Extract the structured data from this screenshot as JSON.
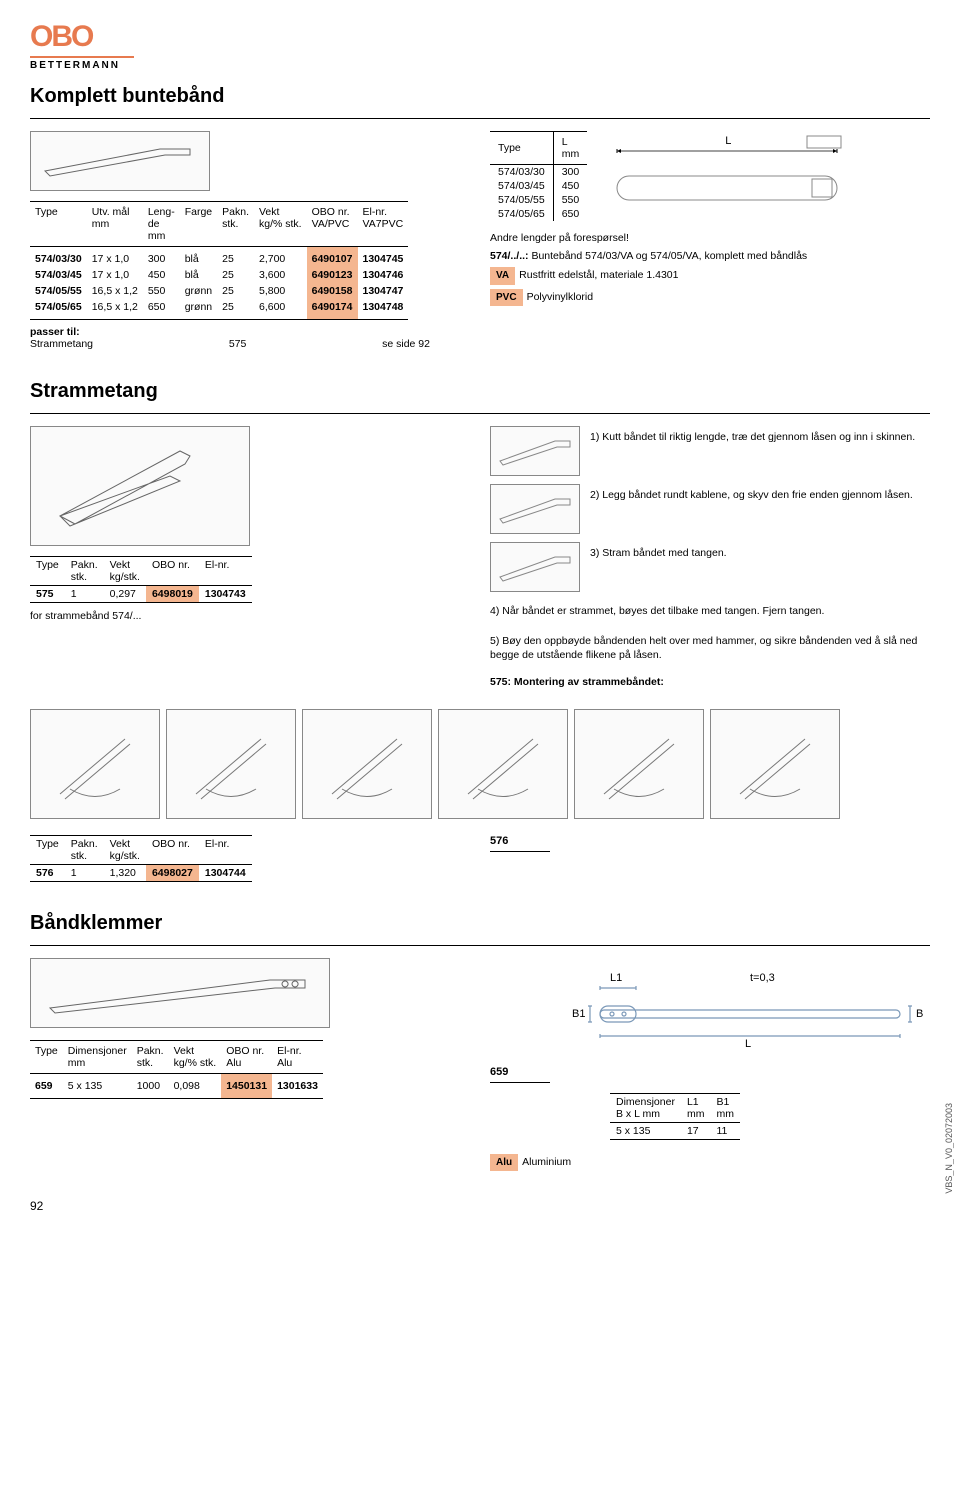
{
  "brand": {
    "name": "OBO",
    "sub": "BETTERMANN"
  },
  "s1": {
    "title": "Komplett buntebånd",
    "headers": [
      "Type",
      "Utv. mål\nmm",
      "Leng-\nde\nmm",
      "Farge",
      "Pakn.\nstk.",
      "Vekt\nkg/% stk.",
      "OBO nr.\nVA/PVC",
      "El-nr.\nVA7PVC"
    ],
    "rows": [
      [
        "574/03/30",
        "17  x 1,0",
        "300",
        "blå",
        "25",
        "2,700",
        "6490107",
        "1304745"
      ],
      [
        "574/03/45",
        "17  x 1,0",
        "450",
        "blå",
        "25",
        "3,600",
        "6490123",
        "1304746"
      ],
      [
        "574/05/55",
        "16,5 x 1,2",
        "550",
        "grønn",
        "25",
        "5,800",
        "6490158",
        "1304747"
      ],
      [
        "574/05/65",
        "16,5 x 1,2",
        "650",
        "grønn",
        "25",
        "6,600",
        "6490174",
        "1304748"
      ]
    ],
    "passer_label": "passer til:",
    "passer_row": [
      "Strammetang",
      "575",
      "se side 92"
    ],
    "right_headers": [
      "Type",
      "L\nmm"
    ],
    "right_rows": [
      [
        "574/03/30",
        "300"
      ],
      [
        "574/03/45",
        "450"
      ],
      [
        "574/05/55",
        "550"
      ],
      [
        "574/05/65",
        "650"
      ]
    ],
    "right_L": "L",
    "note1": "Andre lengder på forespørsel!",
    "note2_pre": "574/../..: ",
    "note2": "Buntebånd 574/03/VA og 574/05/VA, komplett med båndlås",
    "mat1_code": "VA",
    "mat1_txt": "Rustfritt edelstål, materiale 1.4301",
    "mat2_code": "PVC",
    "mat2_txt": "Polyvinylklorid"
  },
  "s2": {
    "title": "Strammetang",
    "headers": [
      "Type",
      "Pakn.\nstk.",
      "Vekt\nkg/stk.",
      "OBO nr.",
      "El-nr."
    ],
    "row": [
      "575",
      "1",
      "0,297",
      "6498019",
      "1304743"
    ],
    "for_txt": "for strammebånd 574/...",
    "steps": [
      "1) Kutt båndet til riktig lengde, træ det gjennom låsen og inn i skinnen.",
      "2) Legg båndet rundt kablene, og skyv den frie enden gjennom låsen.",
      "3) Stram båndet med tangen.",
      "4) Når båndet er strammet, bøyes det tilbake med tangen. Fjern tangen.",
      "5) Bøy den oppbøyde båndenden helt over med hammer, og sikre båndenden ved å slå ned begge de utstående flikene på låsen."
    ],
    "mount": "575: Montering av strammebåndet:"
  },
  "s3": {
    "headers": [
      "Type",
      "Pakn.\nstk.",
      "Vekt\nkg/stk.",
      "OBO nr.",
      "El-nr."
    ],
    "row": [
      "576",
      "1",
      "1,320",
      "6498027",
      "1304744"
    ],
    "right_label": "576"
  },
  "s4": {
    "title": "Båndklemmer",
    "headers": [
      "Type",
      "Dimensjoner\nmm",
      "Pakn.\nstk.",
      "Vekt\nkg/% stk.",
      "OBO nr.\nAlu",
      "El-nr.\nAlu"
    ],
    "row": [
      "659",
      "5 x 135",
      "1000",
      "0,098",
      "1450131",
      "1301633"
    ],
    "right_label": "659",
    "dim_headers": [
      "Dimensjoner\nB x L mm",
      "L1\nmm",
      "B1\nmm"
    ],
    "dim_row": [
      "5 x 135",
      "17",
      "11"
    ],
    "mat_code": "Alu",
    "mat_txt": "Aluminium",
    "draw": {
      "L1": "L1",
      "t": "t=0,3",
      "B": "B",
      "B1": "B1",
      "L": "L"
    }
  },
  "footer": {
    "code": "VBS_N_V0_02072003",
    "page": "92"
  },
  "colors": {
    "accent": "#f4b690",
    "brand": "#e77a4f",
    "tech": "#7a98b8"
  }
}
